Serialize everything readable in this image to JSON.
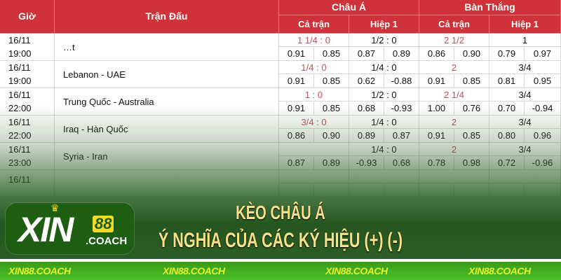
{
  "header": {
    "time": "Giờ",
    "match": "Trận Đấu",
    "asian": "Châu Á",
    "goals": "Bàn Thắng",
    "full": "Cả trận",
    "half": "Hiệp 1"
  },
  "rows": [
    {
      "date": "16/11",
      "time": "19:00",
      "match": "…t",
      "h": [
        "1 1/4 : 0",
        "1/2 : 0",
        "2 1/2",
        "1"
      ],
      "o": [
        "0.91",
        "0.85",
        "0.87",
        "0.89",
        "0.86",
        "0.90",
        "0.79",
        "0.97"
      ]
    },
    {
      "date": "16/11",
      "time": "19:00",
      "match": "Lebanon - UAE",
      "h": [
        "1/4 : 0",
        "1/4 : 0",
        "2",
        "3/4"
      ],
      "o": [
        "0.91",
        "0.85",
        "0.62",
        "-0.88",
        "0.91",
        "0.85",
        "0.81",
        "0.95"
      ]
    },
    {
      "date": "16/11",
      "time": "22:00",
      "match": "Trung Quốc - Australia",
      "h": [
        "1 : 0",
        "1/2 : 0",
        "2 1/4",
        "3/4"
      ],
      "o": [
        "0.91",
        "0.85",
        "0.68",
        "-0.93",
        "1.00",
        "0.76",
        "0.70",
        "-0.94"
      ]
    },
    {
      "date": "16/11",
      "time": "22:00",
      "match": "Iraq - Hàn Quốc",
      "h": [
        "3/4 : 0",
        "1/4 : 0",
        "2",
        "3/4"
      ],
      "o": [
        "0.86",
        "0.90",
        "0.89",
        "0.87",
        "0.91",
        "0.85",
        "0.80",
        "0.96"
      ]
    },
    {
      "date": "16/11",
      "time": "23:00",
      "match": "Syria - Iran",
      "h": [
        "",
        "1/4 : 0",
        "2",
        "3/4"
      ],
      "o": [
        "0.87",
        "0.89",
        "-0.93",
        "0.68",
        "0.78",
        "0.98",
        "0.72",
        "-0.96"
      ]
    },
    {
      "date": "16/11",
      "time": "",
      "match": "",
      "h": [
        "",
        "",
        "",
        ""
      ],
      "o": [
        "",
        "",
        "",
        "",
        "",
        "",
        "",
        ""
      ]
    }
  ],
  "logo": {
    "text": "XIN",
    "number": "88",
    "suffix": ".COACH"
  },
  "banner": {
    "line1": "KÈO CHÂU Á",
    "line2": "Ý NGHĨA CỦA CÁC KÝ HIỆU (+) (-)"
  },
  "footer": [
    "XIN88.COACH",
    "XIN88.COACH",
    "XIN88.COACH",
    "XIN88.COACH"
  ],
  "colors": {
    "header_red": "#cf3339",
    "logo_green": "#1d5e12",
    "accent_yellow": "#f2d92a",
    "title_yellow": "#f6e08a"
  }
}
